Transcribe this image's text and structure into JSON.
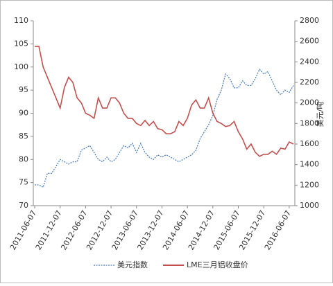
{
  "chart_data": {
    "type": "line",
    "categories": [
      "2011-06-07",
      null,
      null,
      null,
      null,
      null,
      "2011-12-07",
      null,
      null,
      null,
      null,
      null,
      "2012-06-07",
      null,
      null,
      null,
      null,
      null,
      "2012-12-07",
      null,
      null,
      null,
      null,
      null,
      "2013-06-07",
      null,
      null,
      null,
      null,
      null,
      "2013-12-07",
      null,
      null,
      null,
      null,
      null,
      "2014-06-07",
      null,
      null,
      null,
      null,
      null,
      "2014-12-07",
      null,
      null,
      null,
      null,
      null,
      "2015-06-07",
      null,
      null,
      null,
      null,
      null,
      "2015-12-07",
      null,
      null,
      null,
      null,
      null,
      "2016-06-07",
      null
    ],
    "series": [
      {
        "name": "美元指数",
        "color": "#4f81bd",
        "dash": true,
        "values": [
          74.5,
          74.5,
          74,
          77,
          77,
          78.5,
          80,
          79.5,
          79,
          79.5,
          79.5,
          82,
          82.5,
          83,
          81.5,
          80,
          79.5,
          80.5,
          79.5,
          80,
          81.5,
          83,
          82.5,
          83.5,
          81.5,
          83.5,
          81.5,
          80.5,
          80,
          81,
          80.5,
          81,
          80.5,
          80,
          79.5,
          80,
          80.5,
          81,
          82,
          84.5,
          86,
          87.5,
          89.5,
          93,
          95,
          98.5,
          97.5,
          95.5,
          95.5,
          97,
          96,
          96,
          97.5,
          99.5,
          98.5,
          99,
          97,
          95,
          94,
          95,
          94.5,
          96
        ]
      },
      {
        "name": "LME三月铝收盘价",
        "color": "#c0504d",
        "axis": "y2",
        "values": [
          2550,
          2550,
          2350,
          2250,
          2150,
          2050,
          1950,
          2150,
          2250,
          2200,
          2050,
          2000,
          1900,
          1880,
          1850,
          2050,
          1950,
          1950,
          2050,
          2050,
          2000,
          1900,
          1850,
          1850,
          1800,
          1780,
          1830,
          1780,
          1820,
          1750,
          1740,
          1700,
          1700,
          1720,
          1820,
          1780,
          1850,
          1980,
          2030,
          1950,
          1950,
          2050,
          1900,
          1820,
          1800,
          1770,
          1780,
          1820,
          1720,
          1650,
          1550,
          1600,
          1520,
          1480,
          1500,
          1500,
          1530,
          1500,
          1560,
          1550,
          1620,
          1600
        ]
      }
    ],
    "ylim": [
      70,
      110
    ],
    "yticks": [
      70,
      75,
      80,
      85,
      90,
      95,
      100,
      105,
      110
    ],
    "y2lim": [
      1000,
      2800
    ],
    "y2ticks": [
      1000,
      1200,
      1400,
      1600,
      1800,
      2000,
      2200,
      2400,
      2600,
      2800
    ],
    "y2label": "美元/吨",
    "legend": "bottom"
  }
}
